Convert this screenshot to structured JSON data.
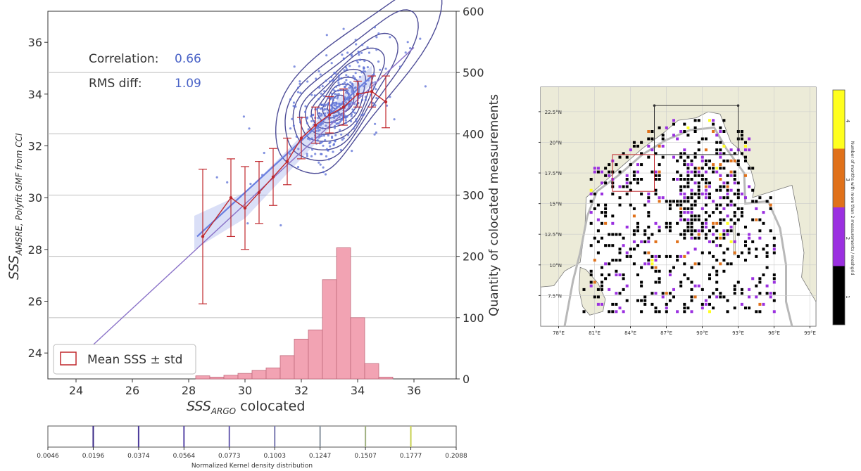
{
  "colors": {
    "contour": "#3b3a8c",
    "scatter": "#5b6fd6",
    "fit": "#6a7fe0",
    "mean": "#c0282d",
    "hist_fill": "#f2a3b3",
    "hist_edge": "#c06a7c",
    "value_text": "#4a63c7",
    "land": "#ecebd8",
    "sea": "#ffffff",
    "cb_black": "#000000",
    "cb_purple": "#9b30e0",
    "cb_orange": "#e0711a",
    "cb_yellow": "#ffff1e"
  },
  "chart_data": [
    {
      "type": "scatter",
      "xlabel": "SSS",
      "xlabel_sub": "ARGO",
      "xlabel_suffix": " colocated",
      "ylabel": "SSS",
      "ylabel_sub": "AMSRE, Polyfit GMF from CCI",
      "y2label": "Quantity of colocated measurements",
      "xlim": [
        23,
        37.5
      ],
      "ylim": [
        23,
        37.2
      ],
      "y2lim": [
        0,
        600
      ],
      "xticks": [
        24,
        26,
        28,
        30,
        32,
        34,
        36
      ],
      "yticks": [
        24,
        26,
        28,
        30,
        32,
        34,
        36
      ],
      "y2ticks": [
        0,
        100,
        200,
        300,
        400,
        500,
        600
      ],
      "annotations": {
        "corr_label": "Correlation:",
        "corr_value": "0.66",
        "rms_label": "RMS diff:",
        "rms_value": "1.09"
      },
      "legend": {
        "label": "Mean SSS ± std",
        "placement": "bottom-left"
      },
      "mean_series": [
        {
          "x": 28.5,
          "y": 28.5,
          "std": 2.6
        },
        {
          "x": 29.5,
          "y": 30.0,
          "std": 1.5
        },
        {
          "x": 30.0,
          "y": 29.6,
          "std": 1.6
        },
        {
          "x": 30.5,
          "y": 30.2,
          "std": 1.2
        },
        {
          "x": 31.0,
          "y": 30.8,
          "std": 1.1
        },
        {
          "x": 31.5,
          "y": 31.4,
          "std": 0.9
        },
        {
          "x": 32.0,
          "y": 32.3,
          "std": 0.8
        },
        {
          "x": 32.5,
          "y": 32.8,
          "std": 0.7
        },
        {
          "x": 33.0,
          "y": 33.2,
          "std": 0.7
        },
        {
          "x": 33.5,
          "y": 33.5,
          "std": 0.7
        },
        {
          "x": 34.0,
          "y": 34.0,
          "std": 0.5
        },
        {
          "x": 34.5,
          "y": 34.1,
          "std": 0.6
        },
        {
          "x": 35.0,
          "y": 33.7,
          "std": 1.0
        }
      ],
      "fit_line": {
        "x": [
          23.5,
          36.0
        ],
        "y": [
          23.2,
          35.8
        ]
      },
      "histogram": {
        "bin_width": 0.5,
        "bins": [
          {
            "x": 28.5,
            "count": 5
          },
          {
            "x": 29.0,
            "count": 3
          },
          {
            "x": 29.5,
            "count": 6
          },
          {
            "x": 30.0,
            "count": 9
          },
          {
            "x": 30.5,
            "count": 14
          },
          {
            "x": 31.0,
            "count": 18
          },
          {
            "x": 31.5,
            "count": 38
          },
          {
            "x": 32.0,
            "count": 65
          },
          {
            "x": 32.5,
            "count": 80
          },
          {
            "x": 33.0,
            "count": 162
          },
          {
            "x": 33.5,
            "count": 214
          },
          {
            "x": 34.0,
            "count": 100
          },
          {
            "x": 34.5,
            "count": 25
          },
          {
            "x": 35.0,
            "count": 3
          }
        ]
      },
      "colorbar": {
        "label": "Normalized Kernel density distribution",
        "ticks": [
          "0.0046",
          "0.0196",
          "0.0374",
          "0.0564",
          "0.0773",
          "0.1003",
          "0.1247",
          "0.1507",
          "0.1777",
          "0.2088"
        ],
        "line_colors": [
          "#2a1f6e",
          "#3a2a86",
          "#4b3a9a",
          "#5a4aa8",
          "#6a5fb0",
          "#7a7ab0",
          "#8a95a0",
          "#a0b080",
          "#c8d050",
          "#f0f020"
        ]
      }
    },
    {
      "type": "heatmap",
      "xticks": [
        "78°E",
        "81°E",
        "84°E",
        "87°E",
        "90°E",
        "93°E",
        "96°E",
        "99°E"
      ],
      "yticks": [
        "22.5°N",
        "20°N",
        "17.5°N",
        "15°N",
        "12.5°N",
        "10°N",
        "7.5°N"
      ],
      "xlim": [
        76.5,
        99.5
      ],
      "ylim": [
        5,
        24.5
      ],
      "colorbar": {
        "levels": [
          "1",
          "2",
          "3",
          "4"
        ],
        "label": "Number of months with more than 2 measurements / meshgrid"
      }
    }
  ]
}
